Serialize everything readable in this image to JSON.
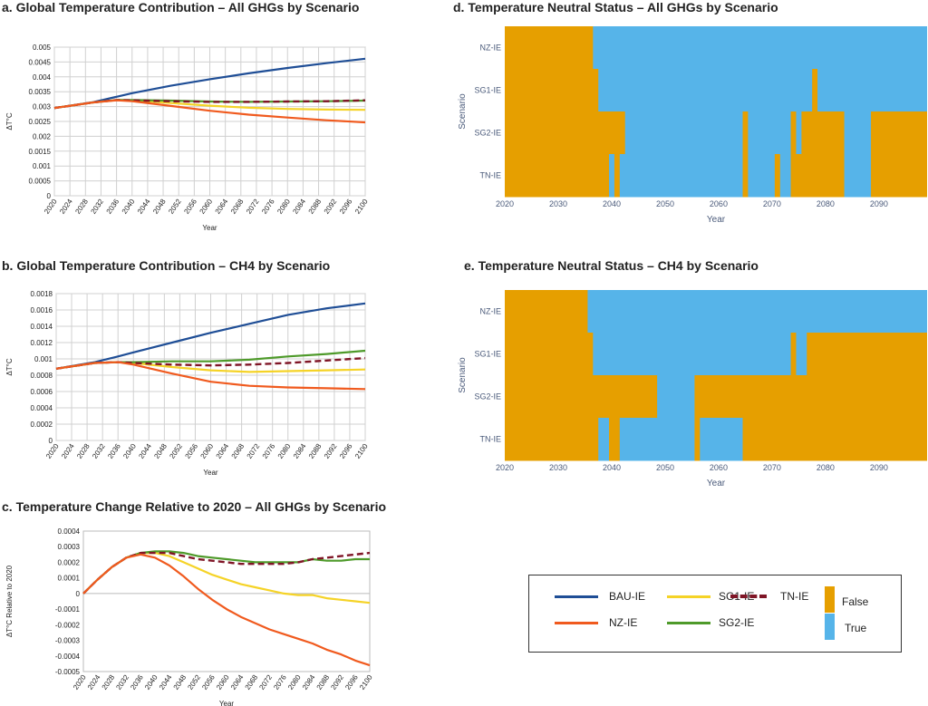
{
  "chart_data": [
    {
      "id": "a",
      "type": "line",
      "title": "a. Global Temperature Contribution – All GHGs by Scenario",
      "xlabel": "Year",
      "ylabel": "ΔT°C",
      "xlim": [
        2020,
        2100
      ],
      "ylim": [
        0,
        0.005
      ],
      "grid": true,
      "x_ticks": [
        "2020",
        "2024",
        "2028",
        "2032",
        "2036",
        "2040",
        "2044",
        "2048",
        "2052",
        "2056",
        "2060",
        "2064",
        "2068",
        "2072",
        "2076",
        "2080",
        "2084",
        "2088",
        "2092",
        "2096",
        "2100"
      ],
      "y_ticks": [
        "0",
        "0.0005",
        "0.001",
        "0.0015",
        "0.002",
        "0.0025",
        "0.003",
        "0.0035",
        "0.004",
        "0.0045",
        "0.005"
      ],
      "x": [
        2020,
        2030,
        2036,
        2040,
        2050,
        2060,
        2070,
        2080,
        2090,
        2100
      ],
      "series": [
        {
          "name": "BAU-IE",
          "values": [
            0.00295,
            0.00315,
            0.00333,
            0.00345,
            0.0037,
            0.00392,
            0.00412,
            0.0043,
            0.00446,
            0.00461
          ]
        },
        {
          "name": "SG1-IE",
          "values": [
            0.00295,
            0.00314,
            0.00322,
            0.00321,
            0.00312,
            0.00303,
            0.00296,
            0.00292,
            0.0029,
            0.00289
          ]
        },
        {
          "name": "SG2-IE",
          "values": [
            0.00295,
            0.00314,
            0.00322,
            0.00322,
            0.0032,
            0.00317,
            0.00316,
            0.00317,
            0.00318,
            0.0032
          ]
        },
        {
          "name": "TN-IE",
          "values": [
            0.00295,
            0.00314,
            0.00322,
            0.00321,
            0.00318,
            0.00316,
            0.00316,
            0.00317,
            0.00318,
            0.00321
          ]
        },
        {
          "name": "NZ-IE",
          "values": [
            0.00295,
            0.00314,
            0.00321,
            0.00318,
            0.00302,
            0.00286,
            0.00273,
            0.00263,
            0.00254,
            0.00247
          ]
        }
      ]
    },
    {
      "id": "b",
      "type": "line",
      "title": "b. Global Temperature Contribution – CH4 by Scenario",
      "xlabel": "Year",
      "ylabel": "ΔT°C",
      "xlim": [
        2020,
        2100
      ],
      "ylim": [
        0,
        0.0018
      ],
      "grid": true,
      "x_ticks": [
        "2020",
        "2024",
        "2028",
        "2032",
        "2036",
        "2040",
        "2044",
        "2048",
        "2052",
        "2056",
        "2060",
        "2064",
        "2068",
        "2072",
        "2076",
        "2080",
        "2084",
        "2088",
        "2092",
        "2096",
        "2100"
      ],
      "y_ticks": [
        "0",
        "0.0002",
        "0.0004",
        "0.0006",
        "0.0008",
        "0.001",
        "0.0012",
        "0.0014",
        "0.0016",
        "0.0018"
      ],
      "x": [
        2020,
        2030,
        2036,
        2040,
        2050,
        2060,
        2070,
        2080,
        2090,
        2100
      ],
      "series": [
        {
          "name": "BAU-IE",
          "values": [
            0.00088,
            0.00096,
            0.00103,
            0.00108,
            0.0012,
            0.00132,
            0.00143,
            0.00154,
            0.00162,
            0.00168
          ]
        },
        {
          "name": "SG1-IE",
          "values": [
            0.00088,
            0.00095,
            0.00096,
            0.00095,
            0.0009,
            0.00086,
            0.00084,
            0.00085,
            0.00086,
            0.00087
          ]
        },
        {
          "name": "SG2-IE",
          "values": [
            0.00088,
            0.00095,
            0.00096,
            0.00096,
            0.00097,
            0.00097,
            0.00099,
            0.00103,
            0.00106,
            0.0011
          ]
        },
        {
          "name": "TN-IE",
          "values": [
            0.00088,
            0.00095,
            0.00096,
            0.00095,
            0.00093,
            0.00092,
            0.00093,
            0.00095,
            0.00098,
            0.00101
          ]
        },
        {
          "name": "NZ-IE",
          "values": [
            0.00088,
            0.00095,
            0.00096,
            0.00093,
            0.00082,
            0.00072,
            0.00067,
            0.00065,
            0.00064,
            0.00063
          ]
        }
      ]
    },
    {
      "id": "c",
      "type": "line",
      "title": "c. Temperature Change Relative to 2020 – All GHGs by Scenario",
      "xlabel": "Year",
      "ylabel": "ΔT°C Relative to 2020",
      "xlim": [
        2020,
        2100
      ],
      "ylim": [
        -0.0005,
        0.0004
      ],
      "grid": false,
      "x_ticks": [
        "2020",
        "2024",
        "2028",
        "2032",
        "2036",
        "2040",
        "2044",
        "2048",
        "2052",
        "2056",
        "2060",
        "2064",
        "2068",
        "2072",
        "2076",
        "2080",
        "2084",
        "2088",
        "2092",
        "2096",
        "2100"
      ],
      "y_ticks": [
        "-0.0005",
        "-0.0004",
        "-0.0003",
        "-0.0002",
        "-0.0001",
        "0",
        "0.0001",
        "0.0002",
        "0.0003",
        "0.0004"
      ],
      "x": [
        2020,
        2024,
        2028,
        2032,
        2036,
        2040,
        2044,
        2048,
        2052,
        2056,
        2060,
        2064,
        2068,
        2072,
        2076,
        2080,
        2084,
        2088,
        2092,
        2096,
        2100
      ],
      "series": [
        {
          "name": "SG1-IE",
          "values": [
            0,
            9e-05,
            0.00017,
            0.00023,
            0.00026,
            0.00026,
            0.00024,
            0.0002,
            0.00016,
            0.00012,
            9e-05,
            6e-05,
            4e-05,
            2e-05,
            0.0,
            -1e-05,
            -1e-05,
            -3e-05,
            -4e-05,
            -5e-05,
            -6e-05
          ]
        },
        {
          "name": "SG2-IE",
          "values": [
            0,
            9e-05,
            0.00017,
            0.00023,
            0.00026,
            0.00027,
            0.00027,
            0.00026,
            0.00024,
            0.00023,
            0.00022,
            0.00021,
            0.0002,
            0.0002,
            0.0002,
            0.0002,
            0.00022,
            0.00021,
            0.00021,
            0.00022,
            0.00022
          ]
        },
        {
          "name": "TN-IE",
          "values": [
            0,
            9e-05,
            0.00017,
            0.00023,
            0.00026,
            0.00026,
            0.00026,
            0.00024,
            0.00022,
            0.00021,
            0.0002,
            0.00019,
            0.00019,
            0.00019,
            0.00019,
            0.0002,
            0.00022,
            0.00023,
            0.00024,
            0.00025,
            0.00026
          ]
        },
        {
          "name": "NZ-IE",
          "values": [
            0,
            9e-05,
            0.00017,
            0.00023,
            0.00025,
            0.00023,
            0.00018,
            0.00011,
            3e-05,
            -4e-05,
            -0.0001,
            -0.00015,
            -0.00019,
            -0.00023,
            -0.00026,
            -0.00029,
            -0.00032,
            -0.00036,
            -0.00039,
            -0.00043,
            -0.00046
          ]
        }
      ]
    },
    {
      "id": "d",
      "type": "heatmap",
      "title": "d. Temperature Neutral Status – All GHGs by Scenario",
      "xlabel": "Year",
      "ylabel": "Scenario",
      "xlim": [
        2020,
        2099
      ],
      "x_ticks": [
        "2020",
        "2030",
        "2040",
        "2050",
        "2060",
        "2070",
        "2080",
        "2090"
      ],
      "rows": [
        "NZ-IE",
        "SG1-IE",
        "SG2-IE",
        "TN-IE"
      ],
      "false_periods": {
        "NZ-IE": [
          [
            2020,
            2036.5
          ]
        ],
        "SG1-IE": [
          [
            2020,
            2037.5
          ],
          [
            2077.5,
            2078.5
          ]
        ],
        "SG2-IE": [
          [
            2020,
            2042.5
          ],
          [
            2064.5,
            2065.5
          ],
          [
            2073.5,
            2074.5
          ],
          [
            2075.5,
            2083.5
          ],
          [
            2088.5,
            2099
          ]
        ],
        "TN-IE": [
          [
            2020,
            2039.5
          ],
          [
            2040.5,
            2041.5
          ],
          [
            2064.5,
            2065.5
          ],
          [
            2070.5,
            2071.5
          ],
          [
            2073.5,
            2083.5
          ],
          [
            2088.5,
            2099
          ]
        ]
      }
    },
    {
      "id": "e",
      "type": "heatmap",
      "title": "e. Temperature Neutral Status – CH4 by Scenario",
      "xlabel": "Year",
      "ylabel": "Scenario",
      "xlim": [
        2020,
        2099
      ],
      "x_ticks": [
        "2020",
        "2030",
        "2040",
        "2050",
        "2060",
        "2070",
        "2080",
        "2090"
      ],
      "rows": [
        "NZ-IE",
        "SG1-IE",
        "SG2-IE",
        "TN-IE"
      ],
      "false_periods": {
        "NZ-IE": [
          [
            2020,
            2035.5
          ]
        ],
        "SG1-IE": [
          [
            2020,
            2036.5
          ],
          [
            2073.5,
            2074.5
          ],
          [
            2076.5,
            2099
          ]
        ],
        "SG2-IE": [
          [
            2020,
            2048.5
          ],
          [
            2055.5,
            2099
          ]
        ],
        "TN-IE": [
          [
            2020,
            2037.5
          ],
          [
            2039.5,
            2041.5
          ],
          [
            2055.5,
            2056.5
          ],
          [
            2064.5,
            2099
          ]
        ]
      }
    }
  ],
  "legend": {
    "items": [
      {
        "label": "BAU-IE",
        "color": "#1f4e96",
        "dashed": false
      },
      {
        "label": "SG1-IE",
        "color": "#f5d327",
        "dashed": false
      },
      {
        "label": "TN-IE",
        "color": "#7f1526",
        "dashed": true
      },
      {
        "label": "NZ-IE",
        "color": "#f05a1e",
        "dashed": false
      },
      {
        "label": "SG2-IE",
        "color": "#4e9a2a",
        "dashed": false
      }
    ],
    "false_label": "False",
    "true_label": "True",
    "false_color": "#e69f00",
    "true_color": "#56b4e9"
  },
  "colors": {
    "BAU-IE": "#1f4e96",
    "SG1-IE": "#f5d327",
    "SG2-IE": "#4e9a2a",
    "TN-IE": "#7f1526",
    "NZ-IE": "#f05a1e"
  }
}
